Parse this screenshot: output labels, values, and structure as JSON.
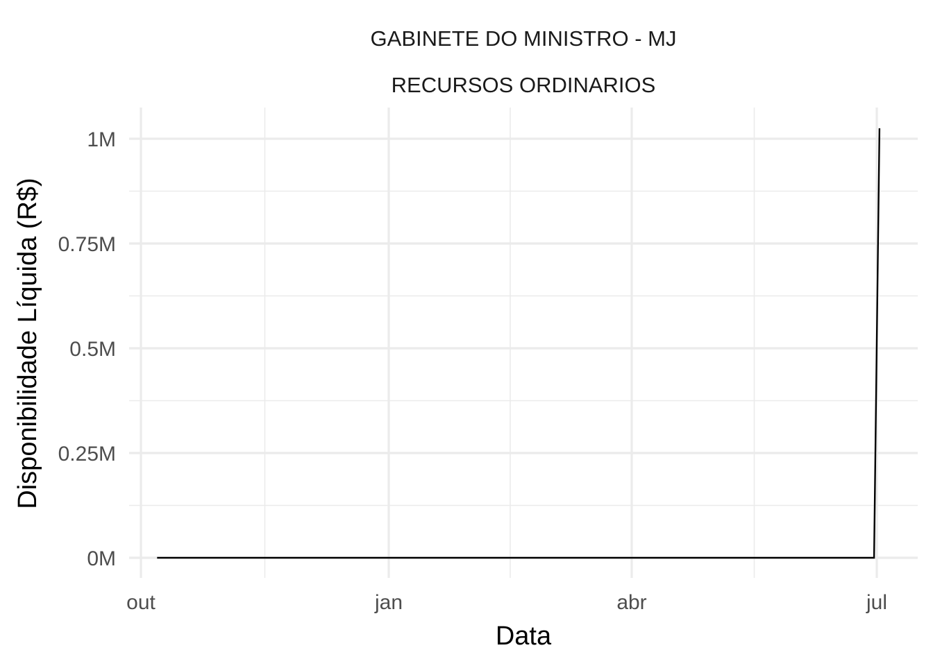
{
  "chart_data": {
    "type": "line",
    "title": "GABINETE DO MINISTRO - MJ",
    "subtitle": "RECURSOS ORDINARIOS",
    "xlabel": "Data",
    "ylabel": "Disponibilidade Líquida (R$)",
    "x_ticks": [
      "out",
      "jan",
      "abr",
      "jul"
    ],
    "y_ticks": [
      "0M",
      "0.25M",
      "0.5M",
      "0.75M",
      "1M"
    ],
    "y_tick_values": [
      0,
      250000,
      500000,
      750000,
      1000000
    ],
    "ylim": [
      -50000,
      1070000
    ],
    "grid": true,
    "line_color": "#000000",
    "series": [
      {
        "x": [
          "out+6d",
          "jul-1d",
          "jul+1d"
        ],
        "y": [
          0,
          0,
          1025000
        ]
      }
    ]
  }
}
